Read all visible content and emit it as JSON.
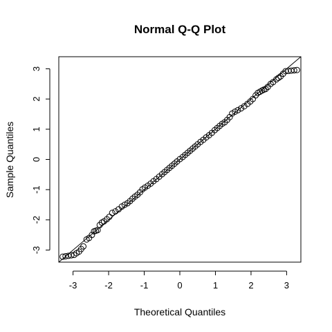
{
  "chart_data": {
    "type": "scatter",
    "title": "Normal Q-Q Plot",
    "xlabel": "Theoretical Quantiles",
    "ylabel": "Sample Quantiles",
    "xlim": [
      -3.4,
      3.4
    ],
    "ylim": [
      -3.4,
      3.4
    ],
    "xticks": [
      -3,
      -2,
      -1,
      0,
      1,
      2,
      3
    ],
    "yticks": [
      -3,
      -2,
      -1,
      0,
      1,
      2,
      3
    ],
    "x_tick_labels": [
      "-3",
      "-2",
      "-1",
      "0",
      "1",
      "2",
      "3"
    ],
    "y_tick_labels": [
      "-3",
      "-2",
      "-1",
      "0",
      "1",
      "2",
      "3"
    ],
    "grid": false,
    "legend": "none",
    "reference_line": {
      "slope": 1.0,
      "intercept": 0.0
    },
    "points": {
      "x": [
        -3.29,
        -2.97,
        -2.83,
        -2.71,
        -2.62,
        -2.55,
        -2.47,
        -2.41,
        -2.36,
        -2.31,
        -2.25,
        -2.19,
        -2.13,
        -2.05,
        -1.98,
        -1.9,
        -1.81,
        -1.72,
        -1.63,
        -1.55,
        -1.47,
        -1.4,
        -1.33,
        -1.26,
        -1.19,
        -1.12,
        -1.05,
        -0.98,
        -0.9,
        -0.82,
        -0.74,
        -0.66,
        -0.58,
        -0.5,
        -0.43,
        -0.36,
        -0.29,
        -0.22,
        -0.15,
        -0.08,
        0.0,
        0.08,
        0.15,
        0.22,
        0.29,
        0.36,
        0.43,
        0.5,
        0.58,
        0.66,
        0.74,
        0.82,
        0.9,
        0.98,
        1.05,
        1.12,
        1.19,
        1.26,
        1.33,
        1.4,
        1.47,
        1.55,
        1.63,
        1.72,
        1.81,
        1.9,
        1.98,
        2.05,
        2.13,
        2.19,
        2.25,
        2.31,
        2.36,
        2.41,
        2.47,
        2.55,
        2.62,
        2.71,
        2.83,
        2.97,
        3.29
      ],
      "y": [
        -3.22,
        -3.16,
        -3.05,
        -2.88,
        -2.65,
        -2.6,
        -2.5,
        -2.38,
        -2.36,
        -2.34,
        -2.17,
        -2.09,
        -2.05,
        -1.98,
        -1.9,
        -1.77,
        -1.72,
        -1.65,
        -1.56,
        -1.5,
        -1.45,
        -1.38,
        -1.3,
        -1.23,
        -1.17,
        -1.09,
        -0.99,
        -0.93,
        -0.87,
        -0.8,
        -0.72,
        -0.65,
        -0.57,
        -0.49,
        -0.42,
        -0.35,
        -0.28,
        -0.21,
        -0.14,
        -0.07,
        0.01,
        0.08,
        0.15,
        0.22,
        0.29,
        0.36,
        0.43,
        0.5,
        0.58,
        0.65,
        0.73,
        0.8,
        0.88,
        0.97,
        1.04,
        1.11,
        1.18,
        1.23,
        1.31,
        1.4,
        1.52,
        1.58,
        1.63,
        1.69,
        1.76,
        1.84,
        1.92,
        2.0,
        2.12,
        2.2,
        2.24,
        2.28,
        2.31,
        2.33,
        2.4,
        2.5,
        2.56,
        2.65,
        2.75,
        2.92,
        2.96
      ]
    }
  }
}
